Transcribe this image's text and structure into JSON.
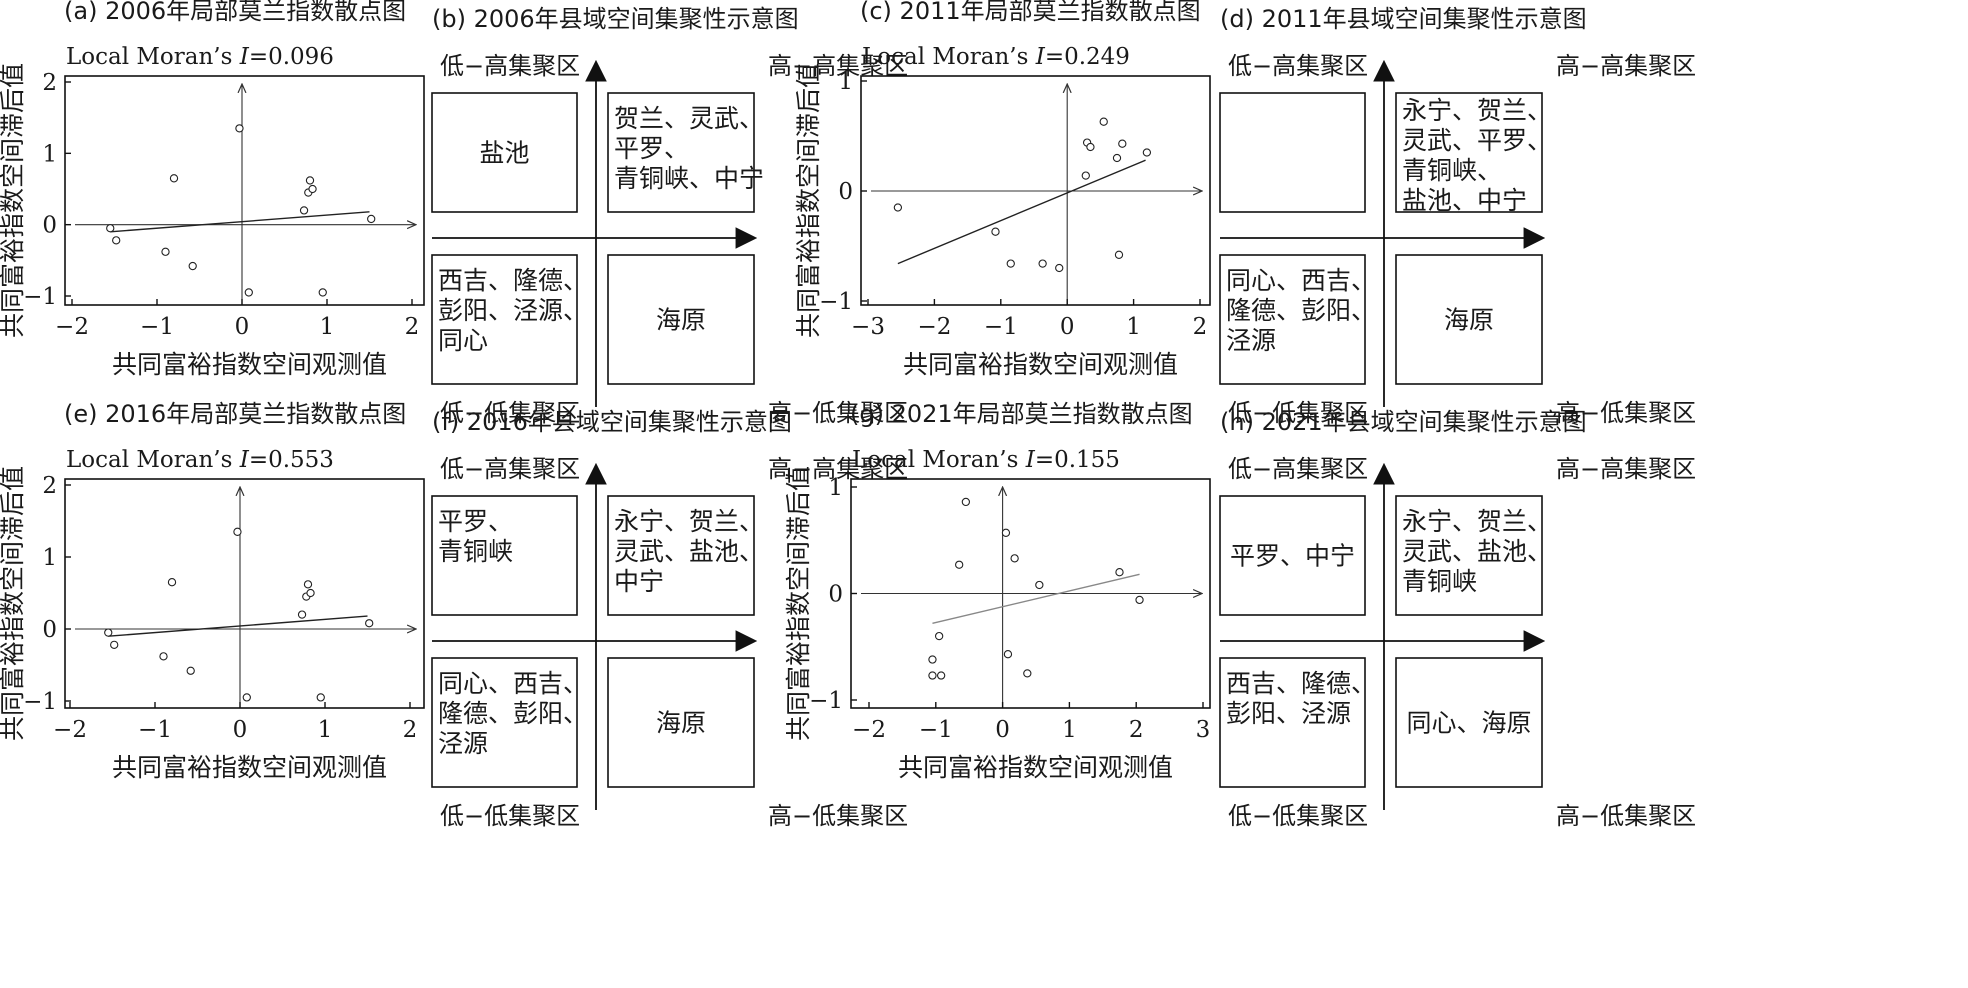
{
  "panels": [
    {
      "kind": "scatter",
      "title": "(a) 2006年局部莫兰指数散点图",
      "moran_prefix": "Local Moran’s ",
      "moran_symbol": "I",
      "moran_value": "=0.096",
      "xlabel": "共同富裕指数空间观测值",
      "ylabel": "共同富裕指数空间滞后值",
      "chart_data": {
        "type": "scatter",
        "xlim": [
          -2,
          2
        ],
        "ylim": [
          -1,
          2
        ],
        "xticks": [
          -2,
          -1,
          0,
          1,
          2
        ],
        "yticks": [
          -1,
          0,
          1,
          2
        ],
        "xtick_labels": [
          "−2",
          "−1",
          "0",
          "1",
          "2"
        ],
        "ytick_labels": [
          "−1",
          "0",
          "1",
          "2"
        ],
        "points": [
          [
            -1.55,
            -0.05
          ],
          [
            -1.48,
            -0.22
          ],
          [
            -0.9,
            -0.38
          ],
          [
            -0.8,
            0.65
          ],
          [
            -0.58,
            -0.58
          ],
          [
            -0.03,
            1.35
          ],
          [
            0.08,
            -0.95
          ],
          [
            0.73,
            0.2
          ],
          [
            0.78,
            0.45
          ],
          [
            0.8,
            0.62
          ],
          [
            0.83,
            0.5
          ],
          [
            0.95,
            -0.95
          ],
          [
            1.52,
            0.08
          ]
        ],
        "trend": [
          [
            -1.55,
            -0.1
          ],
          [
            1.5,
            0.18
          ]
        ],
        "trend_color": "#222222"
      }
    },
    {
      "kind": "quadrant",
      "title": "(b) 2006年县域空间集聚性示意图",
      "labels": {
        "lh": "低−高集聚区",
        "hh": "高−高集聚区",
        "ll": "低−低集聚区",
        "hl": "高−低集聚区"
      },
      "boxes": {
        "lh": [
          "盐池"
        ],
        "hh": [
          "贺兰、灵武、",
          "平罗、",
          "青铜峡、中宁"
        ],
        "ll": [
          "西吉、隆德、",
          "彭阳、泾源、",
          "同心"
        ],
        "hl": [
          "海原"
        ]
      }
    },
    {
      "kind": "scatter",
      "title": "(c) 2011年局部莫兰指数散点图",
      "moran_prefix": "Local Moran’s ",
      "moran_symbol": "I",
      "moran_value": "=0.249",
      "xlabel": "共同富裕指数空间观测值",
      "ylabel": "共同富裕指数空间滞后值",
      "chart_data": {
        "type": "scatter",
        "xlim": [
          -3,
          2
        ],
        "ylim": [
          -1,
          1
        ],
        "xticks": [
          -3,
          -2,
          -1,
          0,
          1,
          2
        ],
        "yticks": [
          -1,
          0,
          1
        ],
        "xtick_labels": [
          "−3",
          "−2",
          "−1",
          "0",
          "1",
          "2"
        ],
        "ytick_labels": [
          "−1",
          "0",
          "1"
        ],
        "points": [
          [
            -2.55,
            -0.15
          ],
          [
            -1.08,
            -0.37
          ],
          [
            -0.85,
            -0.66
          ],
          [
            -0.37,
            -0.66
          ],
          [
            -0.12,
            -0.7
          ],
          [
            0.28,
            0.14
          ],
          [
            0.3,
            0.44
          ],
          [
            0.35,
            0.4
          ],
          [
            0.55,
            0.63
          ],
          [
            0.75,
            0.3
          ],
          [
            0.78,
            -0.58
          ],
          [
            0.83,
            0.43
          ],
          [
            1.2,
            0.35
          ]
        ],
        "trend": [
          [
            -2.55,
            -0.66
          ],
          [
            1.18,
            0.28
          ]
        ],
        "trend_color": "#222222"
      }
    },
    {
      "kind": "quadrant",
      "title": "(d) 2011年县域空间集聚性示意图",
      "labels": {
        "lh": "低−高集聚区",
        "hh": "高−高集聚区",
        "ll": "低−低集聚区",
        "hl": "高−低集聚区"
      },
      "boxes": {
        "lh": [],
        "hh": [
          "永宁、贺兰、",
          "灵武、平罗、",
          "青铜峡、",
          "盐池、中宁"
        ],
        "ll": [
          "同心、西吉、",
          "隆德、彭阳、",
          "泾源"
        ],
        "hl": [
          "海原"
        ]
      }
    },
    {
      "kind": "scatter",
      "title": "(e) 2016年局部莫兰指数散点图",
      "moran_prefix": "Local Moran’s ",
      "moran_symbol": "I",
      "moran_value": "=0.553",
      "xlabel": "共同富裕指数空间观测值",
      "ylabel": "共同富裕指数空间滞后值",
      "chart_data": {
        "type": "scatter",
        "xlim": [
          -2,
          2
        ],
        "ylim": [
          -1,
          2
        ],
        "xticks": [
          -2,
          -1,
          0,
          1,
          2
        ],
        "yticks": [
          -1,
          0,
          1,
          2
        ],
        "xtick_labels": [
          "−2",
          "−1",
          "0",
          "1",
          "2"
        ],
        "ytick_labels": [
          "−1",
          "0",
          "1",
          "2"
        ],
        "points": [
          [
            -1.55,
            -0.05
          ],
          [
            -1.48,
            -0.22
          ],
          [
            -0.9,
            -0.38
          ],
          [
            -0.8,
            0.65
          ],
          [
            -0.58,
            -0.58
          ],
          [
            -0.03,
            1.35
          ],
          [
            0.08,
            -0.95
          ],
          [
            0.73,
            0.2
          ],
          [
            0.78,
            0.45
          ],
          [
            0.8,
            0.62
          ],
          [
            0.83,
            0.5
          ],
          [
            0.95,
            -0.95
          ],
          [
            1.52,
            0.08
          ]
        ],
        "trend": [
          [
            -1.55,
            -0.1
          ],
          [
            1.5,
            0.18
          ]
        ],
        "trend_color": "#222222"
      }
    },
    {
      "kind": "quadrant",
      "title": "(f) 2016年县域空间集聚性示意图",
      "labels": {
        "lh": "低−高集聚区",
        "hh": "高−高集聚区",
        "ll": "低−低集聚区",
        "hl": "高−低集聚区"
      },
      "boxes": {
        "lh": [
          "平罗、",
          "青铜峡"
        ],
        "hh": [
          "永宁、贺兰、",
          "灵武、盐池、",
          "中宁"
        ],
        "ll": [
          "同心、西吉、",
          "隆德、彭阳、",
          "泾源"
        ],
        "hl": [
          "海原"
        ]
      }
    },
    {
      "kind": "scatter",
      "title": "(g) 2021年局部莫兰指数散点图",
      "moran_prefix": "Local Moran’s ",
      "moran_symbol": "I",
      "moran_value": "=0.155",
      "xlabel": "共同富裕指数空间观测值",
      "ylabel": "共同富裕指数空间滞后值",
      "chart_data": {
        "type": "scatter",
        "xlim": [
          -2,
          3
        ],
        "ylim": [
          -1,
          1
        ],
        "xticks": [
          -2,
          -1,
          0,
          1,
          2,
          3
        ],
        "yticks": [
          -1,
          0,
          1
        ],
        "xtick_labels": [
          "−2",
          "−1",
          "0",
          "1",
          "2",
          "3"
        ],
        "ytick_labels": [
          "−1",
          "0",
          "1"
        ],
        "points": [
          [
            -1.05,
            -0.62
          ],
          [
            -1.05,
            -0.77
          ],
          [
            -0.95,
            -0.4
          ],
          [
            -0.92,
            -0.77
          ],
          [
            -0.65,
            0.27
          ],
          [
            -0.55,
            0.86
          ],
          [
            0.05,
            0.57
          ],
          [
            0.08,
            -0.57
          ],
          [
            0.18,
            0.33
          ],
          [
            0.37,
            -0.75
          ],
          [
            0.55,
            0.08
          ],
          [
            1.75,
            0.2
          ],
          [
            2.05,
            -0.06
          ]
        ],
        "trend": [
          [
            -1.05,
            -0.28
          ],
          [
            2.05,
            0.18
          ]
        ],
        "trend_color": "#888888"
      }
    },
    {
      "kind": "quadrant",
      "title": "(h) 2021年县域空间集聚性示意图",
      "labels": {
        "lh": "低−高集聚区",
        "hh": "高−高集聚区",
        "ll": "低−低集聚区",
        "hl": "高−低集聚区"
      },
      "boxes": {
        "lh": [
          "平罗、中宁"
        ],
        "hh": [
          "永宁、贺兰、",
          "灵武、盐池、",
          "青铜峡"
        ],
        "ll": [
          "西吉、隆德、",
          "彭阳、泾源"
        ],
        "hl": [
          "同心、海原"
        ]
      }
    }
  ]
}
